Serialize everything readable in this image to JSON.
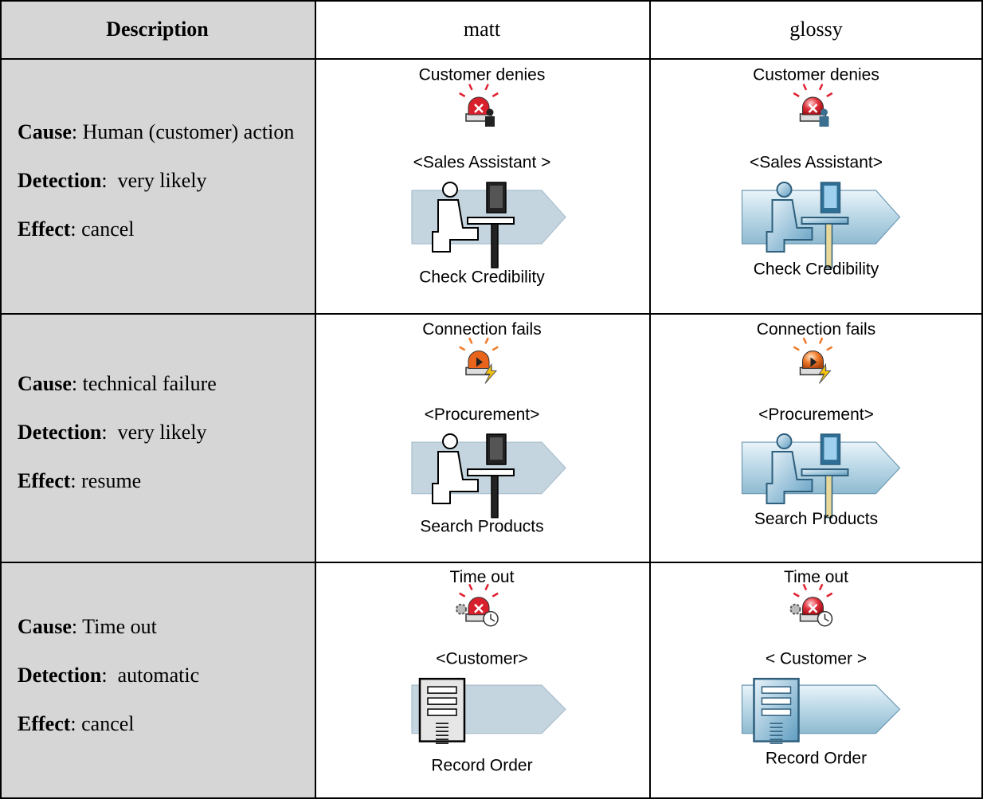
{
  "table": {
    "header": [
      "Description",
      "matt",
      "glossy"
    ],
    "rows": [
      {
        "description": [
          {
            "term": "Cause",
            "text": ": Human (customer) action"
          },
          {
            "term": "Detection",
            "text": ":  very likely"
          },
          {
            "term": "Effect",
            "text": ": cancel"
          }
        ],
        "matt": {
          "event": "Customer denies",
          "role": "<Sales Assistant >",
          "activity": "Check Credibility"
        },
        "glossy": {
          "event": "Customer denies",
          "role": "<Sales Assistant>",
          "activity": "Check Credibility"
        }
      },
      {
        "description": [
          {
            "term": "Cause",
            "text": ": technical failure"
          },
          {
            "term": "Detection",
            "text": ":  very likely"
          },
          {
            "term": "Effect",
            "text": ": resume"
          }
        ],
        "matt": {
          "event": "Connection fails",
          "role": "<Procurement>",
          "activity": "Search Products"
        },
        "glossy": {
          "event": "Connection fails",
          "role": "<Procurement>",
          "activity": "Search Products"
        }
      },
      {
        "description": [
          {
            "term": "Cause",
            "text": ": Time out"
          },
          {
            "term": "Detection",
            "text": ":  automatic"
          },
          {
            "term": "Effect",
            "text": ": cancel"
          }
        ],
        "matt": {
          "event": "Time out",
          "role": "<Customer>",
          "activity": "Record Order"
        },
        "glossy": {
          "event": "Time out",
          "role": "< Customer >",
          "activity": "Record Order"
        }
      }
    ]
  }
}
